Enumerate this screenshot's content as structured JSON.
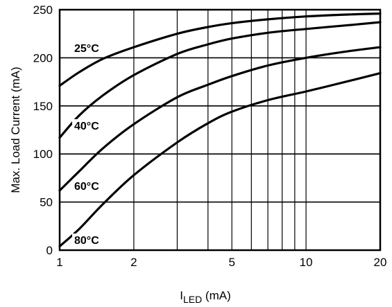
{
  "chart_data": {
    "type": "line",
    "xscale": "log",
    "xlim": [
      1,
      20
    ],
    "ylim": [
      0,
      250
    ],
    "xticks": [
      1,
      2,
      5,
      10,
      20
    ],
    "xtick_labels": [
      "1",
      "2",
      "5",
      "10",
      "20"
    ],
    "x_gridlines": [
      1,
      2,
      3,
      4,
      5,
      6,
      7,
      8,
      9,
      10,
      20
    ],
    "yticks": [
      0,
      50,
      100,
      150,
      200,
      250
    ],
    "ytick_labels": [
      "0",
      "50",
      "100",
      "150",
      "200",
      "250"
    ],
    "grid": true,
    "ylabel": "Max. Load Current (mA)",
    "xlabel_main": "I",
    "xlabel_sub": "LED",
    "xlabel_unit": " (mA)",
    "series": [
      {
        "name": "25°C",
        "x": [
          1,
          1.2,
          1.5,
          2,
          3,
          4,
          5,
          7,
          10,
          15,
          20
        ],
        "y": [
          171,
          185,
          199,
          211,
          225,
          232,
          236,
          240,
          243,
          245,
          246
        ]
      },
      {
        "name": "40°C",
        "x": [
          1,
          1.2,
          1.5,
          2,
          3,
          4,
          5,
          7,
          10,
          15,
          20
        ],
        "y": [
          117,
          140,
          161,
          182,
          204,
          214,
          220,
          226,
          230,
          234,
          237
        ]
      },
      {
        "name": "60°C",
        "x": [
          1,
          1.2,
          1.5,
          2,
          3,
          4,
          5,
          7,
          10,
          15,
          20
        ],
        "y": [
          62,
          82,
          106,
          131,
          159,
          172,
          181,
          192,
          200,
          207,
          211
        ]
      },
      {
        "name": "80°C",
        "x": [
          1,
          1.2,
          1.5,
          2,
          3,
          4,
          5,
          7,
          10,
          15,
          20
        ],
        "y": [
          4,
          22,
          48,
          78,
          112,
          132,
          144,
          156,
          165,
          176,
          184
        ]
      }
    ]
  }
}
